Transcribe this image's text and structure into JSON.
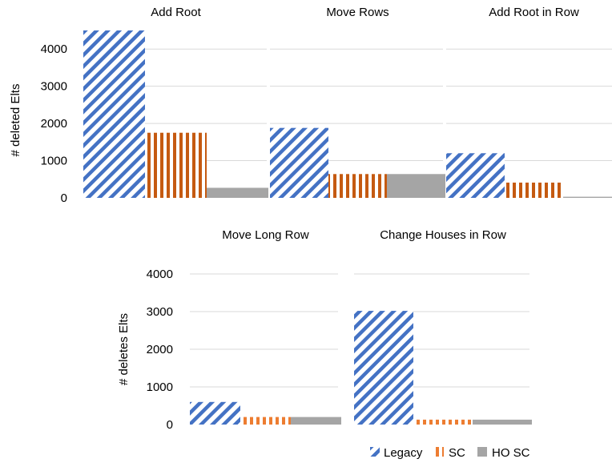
{
  "colors": {
    "legacy": "#4472c4",
    "sc": "#ed7d31",
    "sc_dark": "#c55a11",
    "ho_sc": "#a5a5a5",
    "gridline": "#d9d9d9"
  },
  "legend": [
    {
      "label": "Legacy",
      "series": "legacy"
    },
    {
      "label": "SC",
      "series": "sc"
    },
    {
      "label": "HO SC",
      "series": "ho_sc"
    }
  ],
  "chart_data": [
    {
      "type": "bar",
      "ylabel": "# deleted Elts",
      "ylim": [
        0,
        4500
      ],
      "yticks": [
        0,
        1000,
        2000,
        3000,
        4000
      ],
      "grid": true,
      "legend_position": "none",
      "groups": [
        {
          "title": "Add Root",
          "series": [
            {
              "name": "Legacy",
              "value": 4500
            },
            {
              "name": "SC",
              "value": 1750
            },
            {
              "name": "HO SC",
              "value": 270
            }
          ]
        },
        {
          "title": "Move Rows",
          "series": [
            {
              "name": "Legacy",
              "value": 1880
            },
            {
              "name": "SC",
              "value": 640
            },
            {
              "name": "HO SC",
              "value": 640
            }
          ]
        },
        {
          "title": "Add Root in Row",
          "series": [
            {
              "name": "Legacy",
              "value": 1200
            },
            {
              "name": "SC",
              "value": 410
            },
            {
              "name": "HO SC",
              "value": 30
            }
          ]
        }
      ]
    },
    {
      "type": "bar",
      "ylabel": "# deletes Elts",
      "ylim": [
        0,
        4000
      ],
      "yticks": [
        0,
        1000,
        2000,
        3000,
        4000
      ],
      "grid": true,
      "legend_position": "bottom-right",
      "groups": [
        {
          "title": "Move Long Row",
          "series": [
            {
              "name": "Legacy",
              "value": 600
            },
            {
              "name": "SC",
              "value": 200
            },
            {
              "name": "HO SC",
              "value": 200
            }
          ]
        },
        {
          "title": "Change Houses in Row",
          "series": [
            {
              "name": "Legacy",
              "value": 3020
            },
            {
              "name": "SC",
              "value": 130
            },
            {
              "name": "HO SC",
              "value": 130
            }
          ]
        }
      ]
    }
  ]
}
